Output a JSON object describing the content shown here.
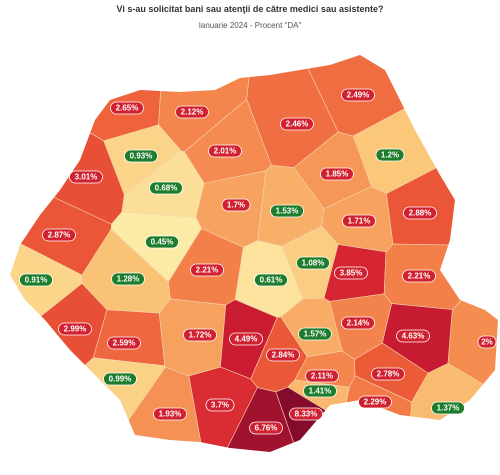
{
  "chart_data": {
    "type": "map",
    "title": "Vi s-au solicitat bani sau atenţii de către medici sau asistente?",
    "subtitle": "Ianuarie 2024 - Procent \"DA\"",
    "values": [
      2.65,
      2.12,
      2.49,
      2.46,
      0.93,
      2.01,
      1.2,
      1.85,
      3.01,
      0.68,
      1.7,
      1.53,
      1.71,
      2.88,
      2.87,
      0.45,
      1.08,
      3.85,
      2.21,
      2.21,
      0.61,
      0.91,
      1.28,
      2.99,
      2.59,
      1.72,
      4.49,
      2.84,
      1.57,
      2.14,
      4.63,
      2,
      0.99,
      2.11,
      2.78,
      1.41,
      1.93,
      3.7,
      8.33,
      2.29,
      1.37,
      6.76
    ],
    "value_labels": [
      "2.65%",
      "2.12%",
      "2.49%",
      "2.46%",
      "0.93%",
      "2.01%",
      "1.2%",
      "1.85%",
      "3.01%",
      "0.68%",
      "1.7%",
      "1.53%",
      "1.71%",
      "2.88%",
      "2.87%",
      "0.45%",
      "1.08%",
      "3.85%",
      "2.21%",
      "2.21%",
      "0.61%",
      "0.91%",
      "1.28%",
      "2.99%",
      "2.59%",
      "1.72%",
      "4.49%",
      "2.84%",
      "1.57%",
      "2.14%",
      "4.63%",
      "2%",
      "0.99%",
      "2.11%",
      "2.78%",
      "1.41%",
      "1.93%",
      "3.7%",
      "8.33%",
      "2.29%",
      "1.37%",
      "6.76%"
    ]
  }
}
